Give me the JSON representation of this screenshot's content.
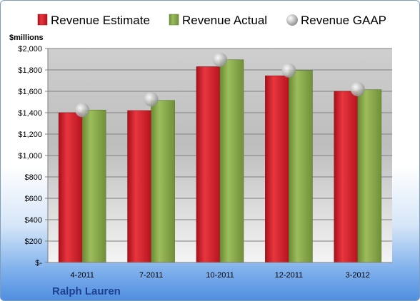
{
  "chart_data": {
    "type": "bar",
    "company": "Ralph Lauren",
    "unit_label": "$millions",
    "categories": [
      "4-2011",
      "7-2011",
      "10-2011",
      "12-2011",
      "3-2012"
    ],
    "series": [
      {
        "name": "Revenue Estimate",
        "kind": "bar",
        "color": "#d81e2a",
        "values": [
          1400,
          1420,
          1830,
          1745,
          1600
        ]
      },
      {
        "name": "Revenue Actual",
        "kind": "bar",
        "color": "#86a84a",
        "values": [
          1425,
          1515,
          1895,
          1795,
          1615
        ]
      },
      {
        "name": "Revenue GAAP",
        "kind": "marker",
        "color": "#b8b8b8",
        "values": [
          1425,
          1525,
          1895,
          1795,
          1620
        ]
      }
    ],
    "ylim": [
      0,
      2000
    ],
    "yticks": [
      0,
      200,
      400,
      600,
      800,
      1000,
      1200,
      1400,
      1600,
      1800,
      2000
    ],
    "ytick_labels": [
      "$-",
      "$200",
      "$400",
      "$600",
      "$800",
      "$1,000",
      "$1,200",
      "$1,400",
      "$1,600",
      "$1,800",
      "$2,000"
    ],
    "grid": true,
    "legend_position": "top"
  }
}
